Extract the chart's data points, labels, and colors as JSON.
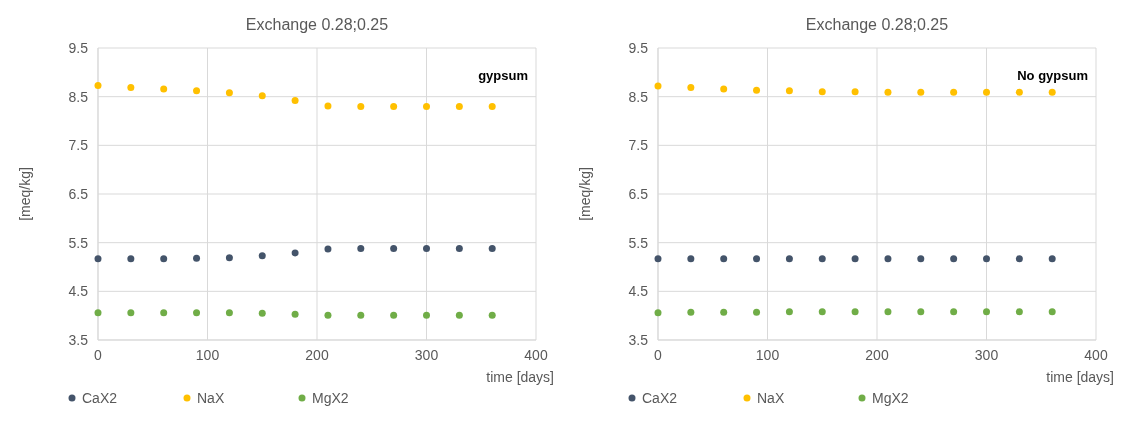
{
  "chart_data": [
    {
      "type": "scatter",
      "title": "Exchange 0.28;0.25",
      "xlabel": "time [days]",
      "ylabel": "[meq/kg]",
      "annotations": [
        "gypsum"
      ],
      "x": [
        0,
        30,
        60,
        90,
        120,
        150,
        180,
        210,
        240,
        270,
        300,
        330,
        360
      ],
      "xlim": [
        0,
        400
      ],
      "xticks": [
        0,
        100,
        200,
        300,
        400
      ],
      "ylim": [
        3.5,
        9.5
      ],
      "yticks": [
        3.5,
        4.5,
        5.5,
        6.5,
        7.5,
        8.5,
        9.5
      ],
      "grid": true,
      "legend": "bottom",
      "marker": "circle",
      "series": [
        {
          "name": "CaX2",
          "color": "#44546a",
          "values": [
            5.17,
            5.17,
            5.17,
            5.18,
            5.19,
            5.23,
            5.29,
            5.37,
            5.38,
            5.38,
            5.38,
            5.38,
            5.38
          ]
        },
        {
          "name": "NaX",
          "color": "#ffc000",
          "values": [
            8.73,
            8.69,
            8.66,
            8.62,
            8.58,
            8.52,
            8.42,
            8.31,
            8.3,
            8.3,
            8.3,
            8.3,
            8.3
          ]
        },
        {
          "name": "MgX2",
          "color": "#70ad47",
          "values": [
            4.06,
            4.06,
            4.06,
            4.06,
            4.06,
            4.05,
            4.03,
            4.01,
            4.01,
            4.01,
            4.01,
            4.01,
            4.01
          ]
        }
      ]
    },
    {
      "type": "scatter",
      "title": "Exchange 0.28;0.25",
      "xlabel": "time [days]",
      "ylabel": "[meq/kg]",
      "annotations": [
        "No gypsum"
      ],
      "x": [
        0,
        30,
        60,
        90,
        120,
        150,
        180,
        210,
        240,
        270,
        300,
        330,
        360
      ],
      "xlim": [
        0,
        400
      ],
      "xticks": [
        0,
        100,
        200,
        300,
        400
      ],
      "ylim": [
        3.5,
        9.5
      ],
      "yticks": [
        3.5,
        4.5,
        5.5,
        6.5,
        7.5,
        8.5,
        9.5
      ],
      "grid": true,
      "legend": "bottom",
      "marker": "circle",
      "series": [
        {
          "name": "CaX2",
          "color": "#44546a",
          "values": [
            5.17,
            5.17,
            5.17,
            5.17,
            5.17,
            5.17,
            5.17,
            5.17,
            5.17,
            5.17,
            5.17,
            5.17,
            5.17
          ]
        },
        {
          "name": "NaX",
          "color": "#ffc000",
          "values": [
            8.72,
            8.69,
            8.66,
            8.63,
            8.62,
            8.6,
            8.6,
            8.59,
            8.59,
            8.59,
            8.59,
            8.59,
            8.59
          ]
        },
        {
          "name": "MgX2",
          "color": "#70ad47",
          "values": [
            4.06,
            4.07,
            4.07,
            4.07,
            4.08,
            4.08,
            4.08,
            4.08,
            4.08,
            4.08,
            4.08,
            4.08,
            4.08
          ]
        }
      ]
    }
  ]
}
